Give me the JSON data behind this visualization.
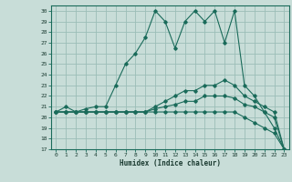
{
  "xlabel": "Humidex (Indice chaleur)",
  "xlim": [
    -0.5,
    23.5
  ],
  "ylim": [
    17,
    30.5
  ],
  "yticks": [
    17,
    18,
    19,
    20,
    21,
    22,
    23,
    24,
    25,
    26,
    27,
    28,
    29,
    30
  ],
  "xticks": [
    0,
    1,
    2,
    3,
    4,
    5,
    6,
    7,
    8,
    9,
    10,
    11,
    12,
    13,
    14,
    15,
    16,
    17,
    18,
    19,
    20,
    21,
    22,
    23
  ],
  "bg_color": "#c8ddd8",
  "line_color": "#1a6b5a",
  "grid_color": "#9bbdb7",
  "x": [
    0,
    1,
    2,
    3,
    4,
    5,
    6,
    7,
    8,
    9,
    10,
    11,
    12,
    13,
    14,
    15,
    16,
    17,
    18,
    19,
    20,
    21,
    22,
    23
  ],
  "y_main": [
    20.5,
    21.0,
    20.5,
    20.8,
    21.0,
    21.0,
    23.0,
    25.0,
    26.0,
    27.5,
    30.0,
    29.0,
    26.5,
    29.0,
    30.0,
    29.0,
    30.0,
    27.0,
    30.0,
    23.0,
    22.0,
    20.5,
    19.0,
    17.0
  ],
  "y_line2": [
    20.5,
    20.5,
    20.5,
    20.5,
    20.5,
    20.5,
    20.5,
    20.5,
    20.5,
    20.5,
    21.0,
    21.5,
    22.0,
    22.5,
    22.5,
    23.0,
    23.0,
    23.5,
    23.0,
    22.0,
    21.5,
    21.0,
    20.5,
    17.0
  ],
  "y_line3": [
    20.5,
    20.5,
    20.5,
    20.5,
    20.5,
    20.5,
    20.5,
    20.5,
    20.5,
    20.5,
    20.8,
    21.0,
    21.2,
    21.5,
    21.5,
    22.0,
    22.0,
    22.0,
    21.8,
    21.2,
    21.0,
    20.5,
    20.0,
    17.0
  ],
  "y_line4": [
    20.5,
    20.5,
    20.5,
    20.5,
    20.5,
    20.5,
    20.5,
    20.5,
    20.5,
    20.5,
    20.5,
    20.5,
    20.5,
    20.5,
    20.5,
    20.5,
    20.5,
    20.5,
    20.5,
    20.0,
    19.5,
    19.0,
    18.5,
    17.0
  ]
}
